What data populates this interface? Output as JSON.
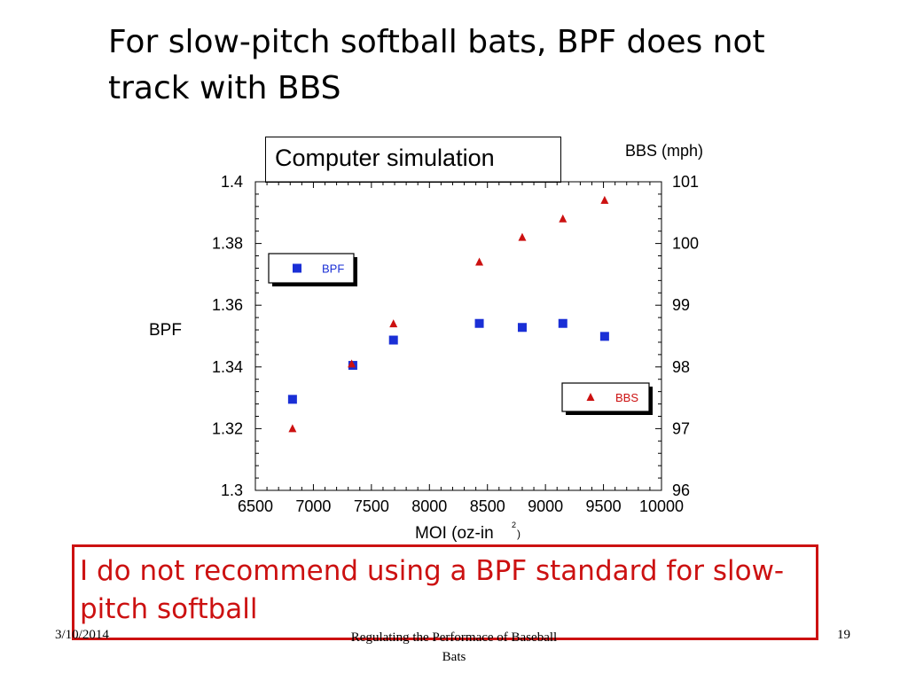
{
  "slide": {
    "title": "For slow-pitch softball bats, BPF does not track with BBS",
    "sim_label": "Computer simulation",
    "callout": "I do not recommend using a BPF standard  for slow-pitch softball",
    "footer_date": "3/10/2014",
    "footer_title": "Regulating the Performace of Baseball Bats",
    "page_number": "19"
  },
  "chart_data": {
    "type": "scatter",
    "xlabel_main": "MOI (oz-in",
    "xlabel_sup": "2",
    "xlabel_close": ")",
    "ylabel_left": "BPF",
    "ylabel_right": "BBS (mph)",
    "xlim": [
      6500,
      10000
    ],
    "ylim_left": [
      1.3,
      1.4
    ],
    "ylim_right": [
      96,
      101
    ],
    "x_ticks": [
      "6500",
      "7000",
      "7500",
      "8000",
      "8500",
      "9000",
      "9500",
      "10000"
    ],
    "y_left_ticks": [
      "1.3",
      "1.32",
      "1.34",
      "1.36",
      "1.38",
      "1.4"
    ],
    "y_right_ticks": [
      "96",
      "97",
      "98",
      "99",
      "100",
      "101"
    ],
    "series": [
      {
        "name": "BPF",
        "axis": "left",
        "marker": "square",
        "color": "#1a2fd6",
        "x": [
          6820,
          7340,
          7690,
          8430,
          8800,
          9150,
          9510
        ],
        "y": [
          1.3295,
          1.3405,
          1.3487,
          1.3541,
          1.3528,
          1.3541,
          1.3499
        ]
      },
      {
        "name": "BBS",
        "axis": "right",
        "marker": "triangle",
        "color": "#cc1111",
        "x": [
          6820,
          7330,
          7690,
          8430,
          8800,
          9150,
          9510
        ],
        "y": [
          97.0,
          98.05,
          98.7,
          99.7,
          100.1,
          100.4,
          100.7
        ]
      }
    ]
  }
}
